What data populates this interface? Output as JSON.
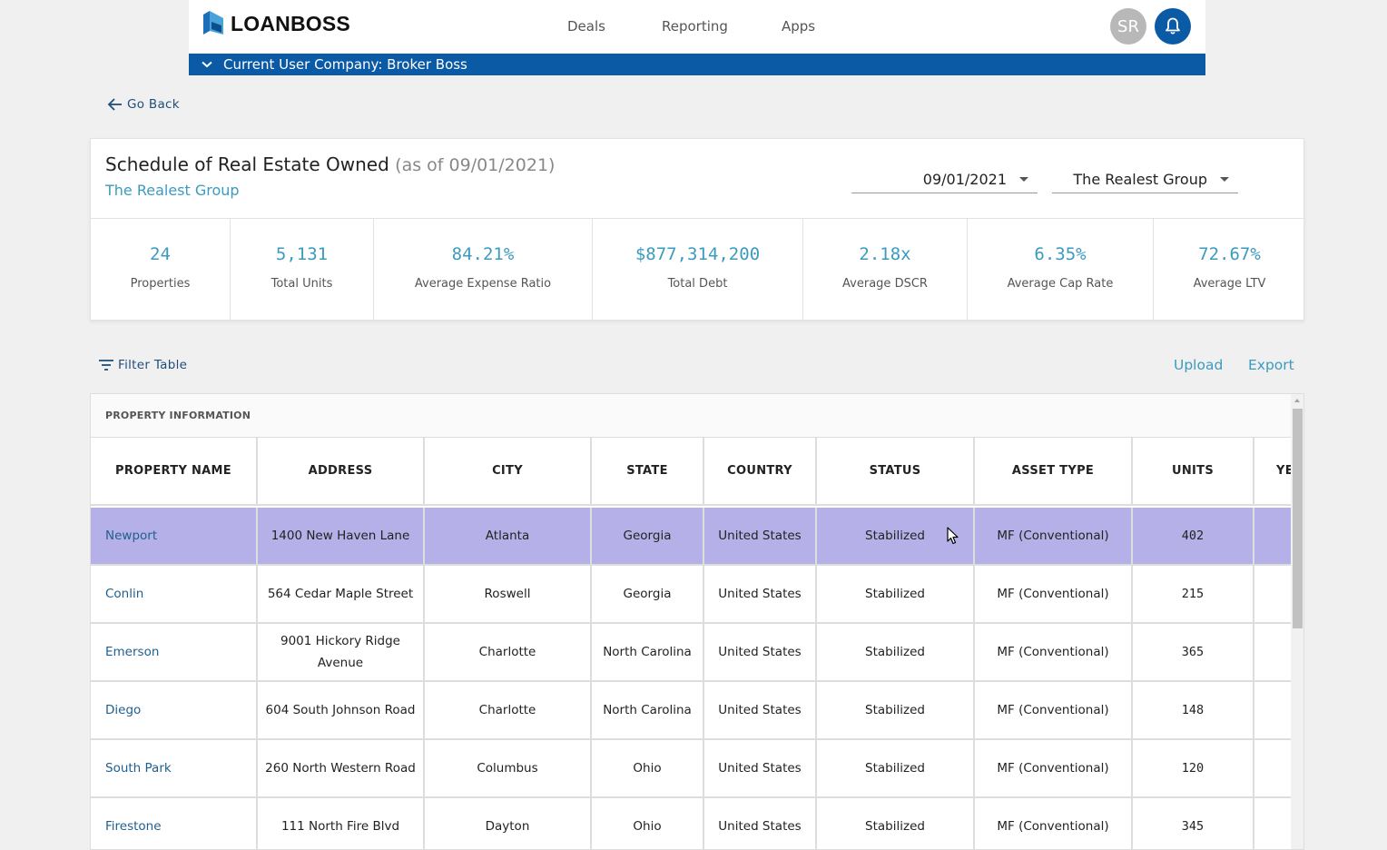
{
  "header": {
    "logo_text": "LOANBOSS",
    "nav": [
      {
        "label": "Deals"
      },
      {
        "label": "Reporting"
      },
      {
        "label": "Apps"
      }
    ],
    "avatar_initials": "SR",
    "company_bar": "Current User Company: Broker Boss"
  },
  "go_back": "Go Back",
  "summary": {
    "title": "Schedule of Real Estate Owned",
    "as_of": "(as of 09/01/2021)",
    "subtitle": "The Realest Group",
    "date_select": "09/01/2021",
    "group_select": "The Realest Group",
    "stats": [
      {
        "value": "24",
        "label": "Properties"
      },
      {
        "value": "5,131",
        "label": "Total Units"
      },
      {
        "value": "84.21%",
        "label": "Average Expense Ratio"
      },
      {
        "value": "$877,314,200",
        "label": "Total Debt"
      },
      {
        "value": "2.18x",
        "label": "Average DSCR"
      },
      {
        "value": "6.35%",
        "label": "Average Cap Rate"
      },
      {
        "value": "72.67%",
        "label": "Average LTV"
      }
    ]
  },
  "toolbar": {
    "filter_label": "Filter Table",
    "upload_label": "Upload",
    "export_label": "Export"
  },
  "table": {
    "group_header": "PROPERTY INFORMATION",
    "columns": [
      "PROPERTY NAME",
      "ADDRESS",
      "CITY",
      "STATE",
      "COUNTRY",
      "STATUS",
      "ASSET TYPE",
      "UNITS",
      "YE"
    ],
    "rows": [
      {
        "name": "Newport",
        "address": "1400 New Haven Lane",
        "city": "Atlanta",
        "state": "Georgia",
        "country": "United States",
        "status": "Stabilized",
        "asset_type": "MF (Conventional)",
        "units": "402",
        "selected": true
      },
      {
        "name": "Conlin",
        "address": "564 Cedar Maple Street",
        "city": "Roswell",
        "state": "Georgia",
        "country": "United States",
        "status": "Stabilized",
        "asset_type": "MF (Conventional)",
        "units": "215",
        "selected": false
      },
      {
        "name": "Emerson",
        "address": "9001 Hickory Ridge Avenue",
        "city": "Charlotte",
        "state": "North Carolina",
        "country": "United States",
        "status": "Stabilized",
        "asset_type": "MF (Conventional)",
        "units": "365",
        "selected": false
      },
      {
        "name": "Diego",
        "address": "604 South Johnson Road",
        "city": "Charlotte",
        "state": "North Carolina",
        "country": "United States",
        "status": "Stabilized",
        "asset_type": "MF (Conventional)",
        "units": "148",
        "selected": false
      },
      {
        "name": "South Park",
        "address": "260 North Western Road",
        "city": "Columbus",
        "state": "Ohio",
        "country": "United States",
        "status": "Stabilized",
        "asset_type": "MF (Conventional)",
        "units": "120",
        "selected": false
      },
      {
        "name": "Firestone",
        "address": "111 North Fire Blvd",
        "city": "Dayton",
        "state": "Ohio",
        "country": "United States",
        "status": "Stabilized",
        "asset_type": "MF (Conventional)",
        "units": "345",
        "selected": false
      }
    ]
  },
  "colors": {
    "brand_blue": "#0b5aa6",
    "accent_teal": "#3b9bbf",
    "selected_row": "#b5b1e8"
  }
}
